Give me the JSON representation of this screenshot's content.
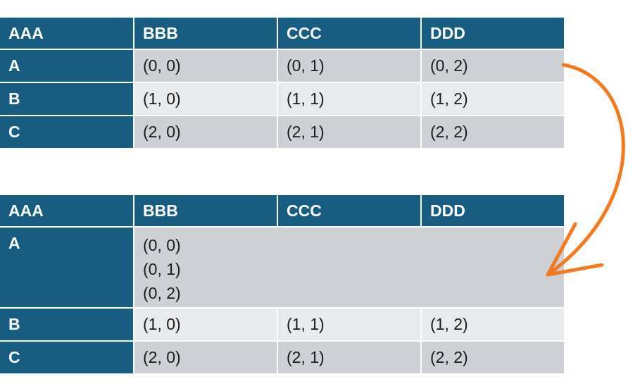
{
  "colors": {
    "header": "#175d82",
    "row_dark": "#cdd0d5",
    "row_light": "#e8eaec",
    "arrow": "#f47a1f"
  },
  "table1": {
    "headers": [
      "AAA",
      "BBB",
      "CCC",
      "DDD"
    ],
    "rows": [
      {
        "label": "A",
        "cells": [
          "(0, 0)",
          "(0, 1)",
          "(0, 2)"
        ]
      },
      {
        "label": "B",
        "cells": [
          "(1, 0)",
          "(1, 1)",
          "(1, 2)"
        ]
      },
      {
        "label": "C",
        "cells": [
          "(2, 0)",
          "(2, 1)",
          "(2, 2)"
        ]
      }
    ]
  },
  "table2": {
    "headers": [
      "AAA",
      "BBB",
      "CCC",
      "DDD"
    ],
    "merged_row": {
      "label": "A",
      "cells": [
        "(0, 0)",
        "(0, 1)",
        "(0, 2)"
      ]
    },
    "rows": [
      {
        "label": "B",
        "cells": [
          "(1, 0)",
          "(1, 1)",
          "(1, 2)"
        ]
      },
      {
        "label": "C",
        "cells": [
          "(2, 0)",
          "(2, 1)",
          "(2, 2)"
        ]
      }
    ]
  },
  "arrow_icon": "curved-arrow-icon"
}
